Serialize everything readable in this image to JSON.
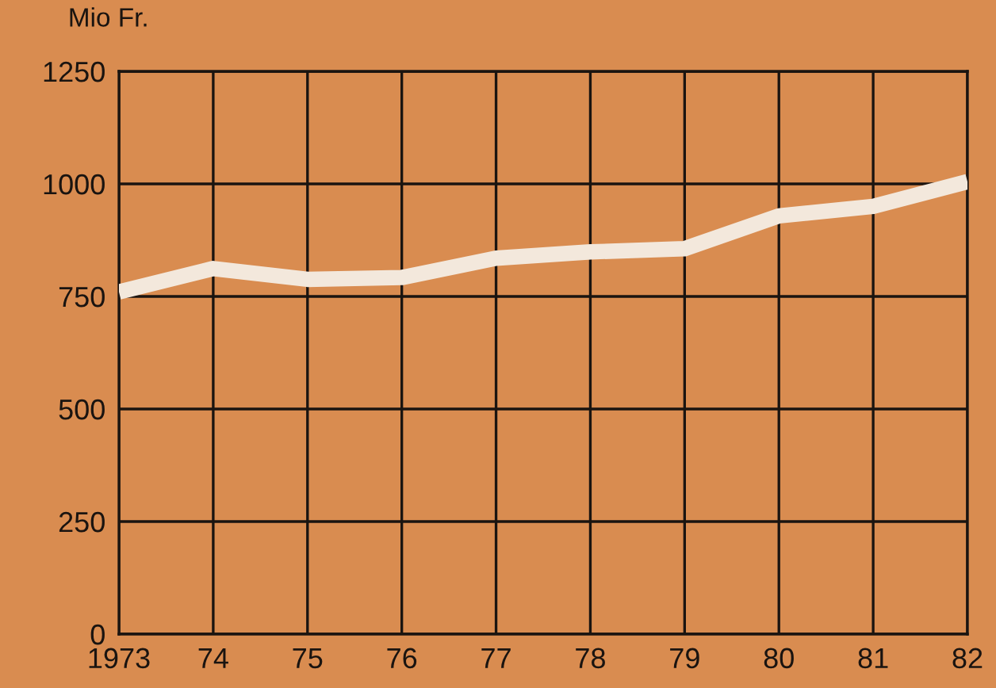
{
  "chart_data": {
    "type": "line",
    "ylabel": "Mio Fr.",
    "categories": [
      "1973",
      "74",
      "75",
      "76",
      "77",
      "78",
      "79",
      "80",
      "81",
      "82"
    ],
    "series": [
      {
        "color": "#f3e8dc",
        "values": [
          760,
          812,
          788,
          792,
          835,
          849,
          856,
          929,
          950,
          1005
        ]
      }
    ],
    "ylim": [
      0,
      1250
    ],
    "yticks": [
      0,
      250,
      500,
      750,
      1000,
      1250
    ],
    "grid": true,
    "marker": "none",
    "line_style": "solid"
  }
}
